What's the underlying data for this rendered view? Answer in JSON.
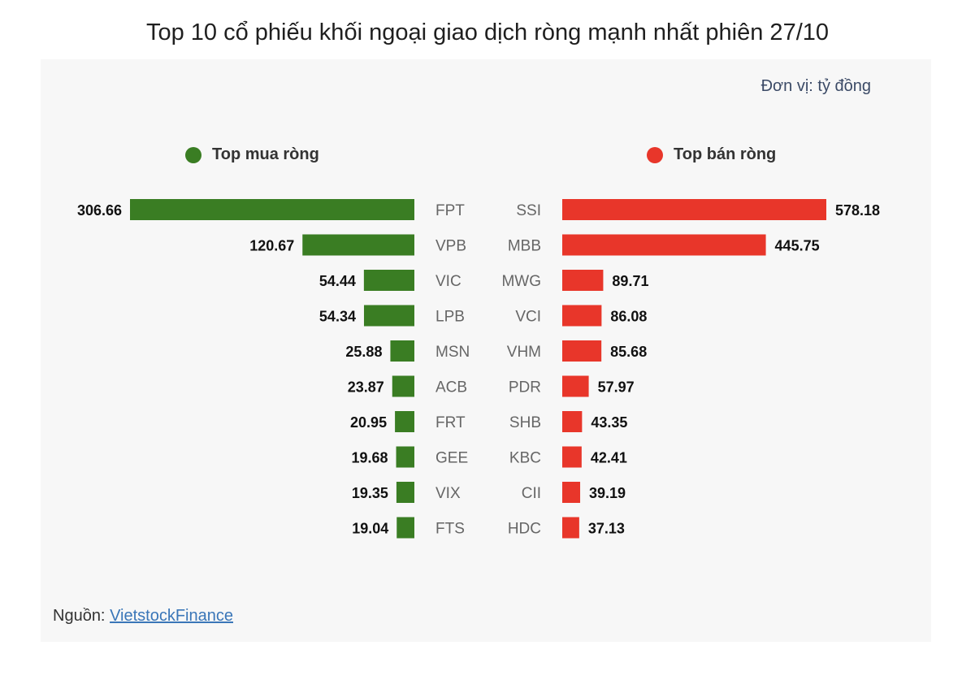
{
  "title": "Top 10 cổ phiếu khối ngoại giao dịch ròng mạnh nhất phiên 27/10",
  "unit_label": "Đơn vị: tỷ đồng",
  "source_prefix": "Nguồn: ",
  "source_link": "VietstockFinance",
  "colors": {
    "buy": "#3a7d23",
    "sell": "#e8362a"
  },
  "chart_data": {
    "type": "bar",
    "title": "Top 10 cổ phiếu khối ngoại giao dịch ròng mạnh nhất phiên 27/10",
    "unit": "Đơn vị: tỷ đồng",
    "series": [
      {
        "name": "Top mua ròng",
        "categories": [
          "FPT",
          "VPB",
          "VIC",
          "LPB",
          "MSN",
          "ACB",
          "FRT",
          "GEE",
          "VIX",
          "FTS"
        ],
        "values": [
          306.66,
          120.67,
          54.44,
          54.34,
          25.88,
          23.87,
          20.95,
          19.68,
          19.35,
          19.04
        ],
        "labels": [
          "306.66",
          "120.67",
          "54.44",
          "54.34",
          "25.88",
          "23.87",
          "20.95",
          "19.68",
          "19.35",
          "19.04"
        ]
      },
      {
        "name": "Top bán ròng",
        "categories": [
          "SSI",
          "MBB",
          "MWG",
          "VCI",
          "VHM",
          "PDR",
          "SHB",
          "KBC",
          "CII",
          "HDC"
        ],
        "values": [
          578.18,
          445.75,
          89.71,
          86.08,
          85.68,
          57.97,
          43.35,
          42.41,
          39.19,
          37.13
        ],
        "labels": [
          "578.18",
          "445.75",
          "89.71",
          "86.08",
          "85.68",
          "57.97",
          "43.35",
          "42.41",
          "39.19",
          "37.13"
        ]
      }
    ],
    "legend": "top",
    "grid": false
  }
}
